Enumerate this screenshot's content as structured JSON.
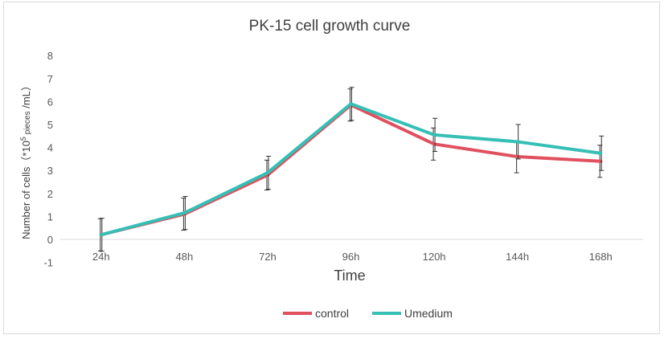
{
  "chart_data": {
    "type": "line",
    "title": "PK-15 cell growth curve",
    "xlabel": "Time",
    "ylabel_main": "Number of cells（*10",
    "ylabel_sup": "5",
    "ylabel_small": " pieces",
    "ylabel_end": " /mL）",
    "categories": [
      "24h",
      "48h",
      "72h",
      "96h",
      "120h",
      "144h",
      "168h"
    ],
    "ylim": [
      -1,
      8
    ],
    "yticks": [
      "-1",
      "0",
      "1",
      "2",
      "3",
      "4",
      "5",
      "6",
      "7",
      "8"
    ],
    "grid": false,
    "legend_position": "bottom",
    "series": [
      {
        "name": "control",
        "color": "#e0505e",
        "values": [
          0.2,
          1.1,
          2.8,
          5.85,
          4.15,
          3.6,
          3.4
        ],
        "error": [
          0.7,
          0.7,
          0.65,
          0.7,
          0.7,
          0.7,
          0.7
        ]
      },
      {
        "name": "Umedium",
        "color": "#35bfb5",
        "values": [
          0.2,
          1.15,
          2.9,
          5.9,
          4.55,
          4.25,
          3.75
        ],
        "error": [
          0.72,
          0.72,
          0.72,
          0.72,
          0.72,
          0.75,
          0.75
        ]
      }
    ]
  }
}
